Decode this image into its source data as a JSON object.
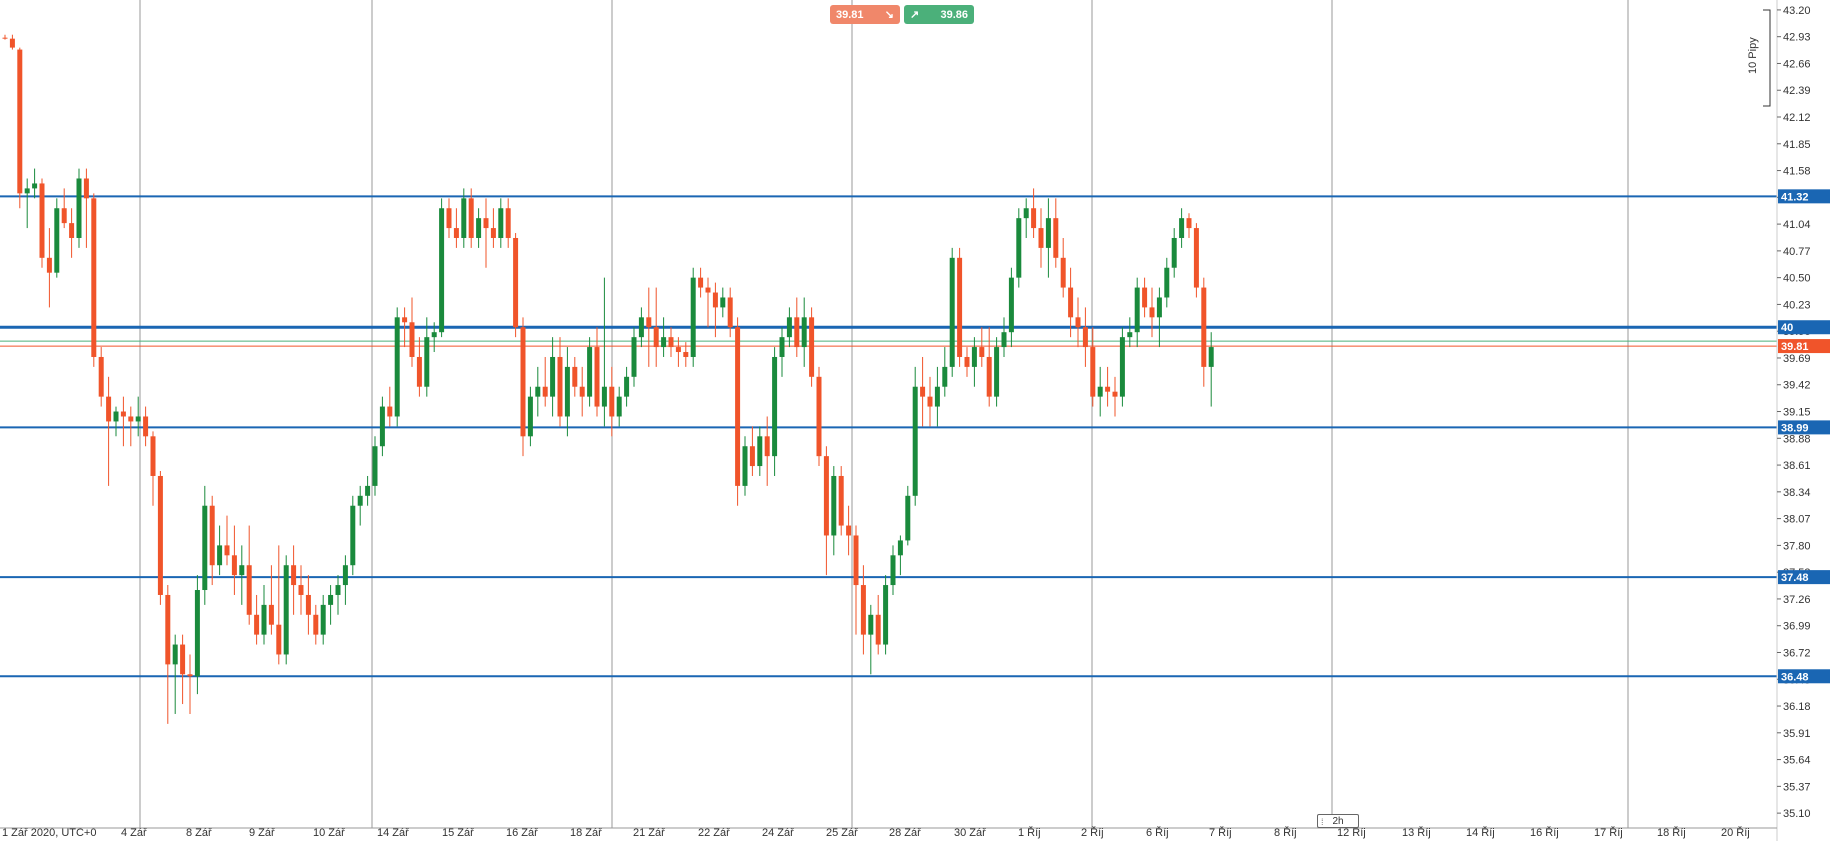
{
  "trade": {
    "sell_price": "39.81",
    "buy_price": "39.86",
    "sell_arrow": "↘",
    "buy_arrow": "↗",
    "sell_color": "#f0876a",
    "buy_color": "#4bb07a"
  },
  "pip_scale_label": "10 Pipy",
  "timeframe": "2h",
  "chart_data": {
    "type": "candlestick",
    "y_ticks": [
      "43.20",
      "42.93",
      "42.66",
      "42.39",
      "42.12",
      "41.85",
      "41.58",
      "41.31",
      "41.04",
      "40.77",
      "40.50",
      "40.23",
      "39.96",
      "39.69",
      "39.42",
      "39.15",
      "38.88",
      "38.61",
      "38.34",
      "38.07",
      "37.80",
      "37.53",
      "37.26",
      "36.99",
      "36.72",
      "36.45",
      "36.18",
      "35.91",
      "35.64",
      "35.37",
      "35.10"
    ],
    "ylim": [
      34.95,
      43.3
    ],
    "x_labels": [
      "1 Zář 2020, UTC+0",
      "4 Zář",
      "8 Zář",
      "9 Zář",
      "10 Zář",
      "14 Zář",
      "15 Zář",
      "16 Zář",
      "18 Zář",
      "21 Zář",
      "22 Zář",
      "24 Zář",
      "25 Zář",
      "28 Zář",
      "30 Zář",
      "1 Říj",
      "2 Říj",
      "6 Říj",
      "7 Říj",
      "8 Říj",
      "12 Říj",
      "13 Říj",
      "14 Říj",
      "16 Říj",
      "17 Říj",
      "18 Říj",
      "20 Říj"
    ],
    "levels": [
      {
        "value": 41.32,
        "label": "41.32"
      },
      {
        "value": 40.0,
        "label": "40"
      },
      {
        "value": 38.99,
        "label": "38.99"
      },
      {
        "value": 37.48,
        "label": "37.48"
      },
      {
        "value": 36.48,
        "label": "36.48"
      }
    ],
    "bid_line": 39.81,
    "ask_line": 39.86,
    "bid_label": "39.81",
    "level_color": "#1a66b3",
    "up_color": "#1a8a3c",
    "down_color": "#f0542a",
    "candles": [
      [
        42.92,
        42.95,
        42.9,
        42.91
      ],
      [
        42.91,
        42.95,
        42.8,
        42.82
      ],
      [
        42.8,
        42.82,
        41.2,
        41.35
      ],
      [
        41.35,
        41.5,
        41.0,
        41.4
      ],
      [
        41.4,
        41.6,
        41.3,
        41.45
      ],
      [
        41.45,
        41.5,
        40.6,
        40.7
      ],
      [
        40.7,
        41.0,
        40.2,
        40.55
      ],
      [
        40.55,
        41.3,
        40.5,
        41.2
      ],
      [
        41.2,
        41.4,
        41.0,
        41.05
      ],
      [
        41.05,
        41.2,
        40.7,
        40.9
      ],
      [
        40.9,
        41.6,
        40.8,
        41.5
      ],
      [
        41.5,
        41.6,
        40.8,
        41.3
      ],
      [
        41.3,
        41.35,
        39.6,
        39.7
      ],
      [
        39.7,
        39.8,
        39.2,
        39.3
      ],
      [
        39.3,
        39.5,
        38.4,
        39.05
      ],
      [
        39.05,
        39.2,
        38.9,
        39.15
      ],
      [
        39.15,
        39.3,
        38.8,
        39.1
      ],
      [
        39.1,
        39.2,
        38.8,
        39.05
      ],
      [
        39.05,
        39.3,
        38.9,
        39.1
      ],
      [
        39.1,
        39.2,
        38.8,
        38.9
      ],
      [
        38.9,
        38.95,
        38.2,
        38.5
      ],
      [
        38.5,
        38.55,
        37.2,
        37.3
      ],
      [
        37.3,
        37.4,
        36.0,
        36.6
      ],
      [
        36.6,
        36.9,
        36.1,
        36.8
      ],
      [
        36.8,
        36.9,
        36.2,
        36.5
      ],
      [
        36.5,
        36.7,
        36.1,
        36.48
      ],
      [
        36.48,
        37.5,
        36.3,
        37.35
      ],
      [
        37.35,
        38.4,
        37.2,
        38.2
      ],
      [
        38.2,
        38.3,
        37.4,
        37.6
      ],
      [
        37.6,
        38.0,
        37.5,
        37.8
      ],
      [
        37.8,
        38.1,
        37.6,
        37.7
      ],
      [
        37.7,
        38.0,
        37.3,
        37.5
      ],
      [
        37.5,
        37.8,
        37.2,
        37.6
      ],
      [
        37.6,
        38.0,
        37.0,
        37.1
      ],
      [
        37.1,
        37.3,
        36.8,
        36.9
      ],
      [
        36.9,
        37.4,
        36.8,
        37.2
      ],
      [
        37.2,
        37.6,
        36.9,
        37.0
      ],
      [
        37.0,
        37.8,
        36.6,
        36.7
      ],
      [
        36.7,
        37.7,
        36.6,
        37.6
      ],
      [
        37.6,
        37.8,
        37.1,
        37.4
      ],
      [
        37.4,
        37.6,
        37.1,
        37.3
      ],
      [
        37.3,
        37.5,
        36.9,
        37.1
      ],
      [
        37.1,
        37.2,
        36.8,
        36.9
      ],
      [
        36.9,
        37.3,
        36.8,
        37.2
      ],
      [
        37.2,
        37.4,
        37.0,
        37.3
      ],
      [
        37.3,
        37.5,
        37.1,
        37.4
      ],
      [
        37.4,
        37.7,
        37.2,
        37.6
      ],
      [
        37.6,
        38.3,
        37.5,
        38.2
      ],
      [
        38.2,
        38.4,
        38.0,
        38.3
      ],
      [
        38.3,
        38.5,
        38.2,
        38.4
      ],
      [
        38.4,
        38.9,
        38.3,
        38.8
      ],
      [
        38.8,
        39.3,
        38.7,
        39.2
      ],
      [
        39.2,
        39.4,
        39.0,
        39.1
      ],
      [
        39.1,
        40.2,
        39.0,
        40.1
      ],
      [
        40.1,
        40.2,
        39.8,
        40.05
      ],
      [
        40.05,
        40.3,
        39.6,
        39.7
      ],
      [
        39.7,
        39.9,
        39.3,
        39.4
      ],
      [
        39.4,
        40.1,
        39.3,
        39.9
      ],
      [
        39.9,
        40.05,
        39.75,
        39.95
      ],
      [
        39.95,
        41.3,
        39.9,
        41.2
      ],
      [
        41.2,
        41.3,
        40.9,
        41.0
      ],
      [
        41.0,
        41.2,
        40.8,
        40.9
      ],
      [
        40.9,
        41.4,
        40.8,
        41.3
      ],
      [
        41.3,
        41.4,
        40.8,
        40.9
      ],
      [
        40.9,
        41.2,
        40.8,
        41.1
      ],
      [
        41.1,
        41.3,
        40.6,
        41.0
      ],
      [
        41.0,
        41.2,
        40.8,
        40.9
      ],
      [
        40.9,
        41.3,
        40.8,
        41.2
      ],
      [
        41.2,
        41.3,
        40.8,
        40.9
      ],
      [
        40.9,
        40.95,
        39.9,
        40.0
      ],
      [
        40.0,
        40.1,
        38.7,
        38.9
      ],
      [
        38.9,
        39.4,
        38.8,
        39.3
      ],
      [
        39.3,
        39.6,
        39.1,
        39.4
      ],
      [
        39.4,
        39.7,
        39.2,
        39.3
      ],
      [
        39.3,
        39.9,
        39.1,
        39.7
      ],
      [
        39.7,
        39.9,
        39.0,
        39.1
      ],
      [
        39.1,
        39.8,
        38.9,
        39.6
      ],
      [
        39.6,
        39.7,
        39.3,
        39.4
      ],
      [
        39.4,
        39.6,
        39.1,
        39.3
      ],
      [
        39.3,
        39.9,
        39.2,
        39.8
      ],
      [
        39.8,
        40.0,
        39.1,
        39.2
      ],
      [
        39.2,
        40.5,
        39.0,
        39.4
      ],
      [
        39.4,
        39.6,
        38.9,
        39.1
      ],
      [
        39.1,
        39.4,
        39.0,
        39.3
      ],
      [
        39.3,
        39.6,
        39.2,
        39.5
      ],
      [
        39.5,
        40.0,
        39.4,
        39.9
      ],
      [
        39.9,
        40.2,
        39.8,
        40.1
      ],
      [
        40.1,
        40.4,
        39.6,
        40.0
      ],
      [
        40.0,
        40.4,
        39.6,
        39.8
      ],
      [
        39.8,
        40.1,
        39.7,
        39.9
      ],
      [
        39.9,
        40.0,
        39.7,
        39.8
      ],
      [
        39.8,
        39.9,
        39.6,
        39.75
      ],
      [
        39.75,
        39.85,
        39.6,
        39.7
      ],
      [
        39.7,
        40.6,
        39.6,
        40.5
      ],
      [
        40.5,
        40.6,
        40.3,
        40.4
      ],
      [
        40.4,
        40.5,
        40.0,
        40.35
      ],
      [
        40.35,
        40.45,
        39.9,
        40.2
      ],
      [
        40.2,
        40.4,
        40.1,
        40.3
      ],
      [
        40.3,
        40.4,
        39.9,
        40.0
      ],
      [
        40.0,
        40.1,
        38.2,
        38.4
      ],
      [
        38.4,
        38.9,
        38.3,
        38.8
      ],
      [
        38.8,
        39.0,
        38.5,
        38.6
      ],
      [
        38.6,
        39.0,
        38.5,
        38.9
      ],
      [
        38.9,
        39.1,
        38.4,
        38.7
      ],
      [
        38.7,
        39.8,
        38.5,
        39.7
      ],
      [
        39.7,
        40.0,
        39.5,
        39.9
      ],
      [
        39.9,
        40.2,
        39.8,
        40.1
      ],
      [
        40.1,
        40.3,
        39.7,
        39.8
      ],
      [
        39.8,
        40.3,
        39.6,
        40.1
      ],
      [
        40.1,
        40.2,
        39.4,
        39.5
      ],
      [
        39.5,
        39.6,
        38.6,
        38.7
      ],
      [
        38.7,
        38.8,
        37.5,
        37.9
      ],
      [
        37.9,
        38.6,
        37.7,
        38.5
      ],
      [
        38.5,
        38.6,
        37.9,
        38.0
      ],
      [
        38.0,
        38.2,
        37.7,
        37.9
      ],
      [
        37.9,
        38.0,
        36.9,
        37.4
      ],
      [
        37.4,
        37.6,
        36.7,
        36.9
      ],
      [
        36.9,
        37.2,
        36.5,
        37.1
      ],
      [
        37.1,
        37.3,
        36.7,
        36.8
      ],
      [
        36.8,
        37.5,
        36.7,
        37.4
      ],
      [
        37.4,
        37.8,
        37.3,
        37.7
      ],
      [
        37.7,
        37.9,
        37.5,
        37.85
      ],
      [
        37.85,
        38.4,
        37.8,
        38.3
      ],
      [
        38.3,
        39.6,
        38.2,
        39.4
      ],
      [
        39.4,
        39.7,
        39.0,
        39.3
      ],
      [
        39.3,
        39.5,
        39.0,
        39.2
      ],
      [
        39.2,
        39.6,
        39.0,
        39.4
      ],
      [
        39.4,
        39.8,
        39.3,
        39.6
      ],
      [
        39.6,
        40.8,
        39.5,
        40.7
      ],
      [
        40.7,
        40.8,
        39.6,
        39.7
      ],
      [
        39.7,
        39.8,
        39.5,
        39.6
      ],
      [
        39.6,
        39.9,
        39.4,
        39.8
      ],
      [
        39.8,
        40.0,
        39.6,
        39.7
      ],
      [
        39.7,
        40.0,
        39.2,
        39.3
      ],
      [
        39.3,
        39.9,
        39.2,
        39.8
      ],
      [
        39.8,
        40.1,
        39.7,
        39.95
      ],
      [
        39.95,
        40.6,
        39.8,
        40.5
      ],
      [
        40.5,
        41.2,
        40.4,
        41.1
      ],
      [
        41.1,
        41.3,
        40.9,
        41.2
      ],
      [
        41.2,
        41.4,
        40.9,
        41.0
      ],
      [
        41.0,
        41.2,
        40.6,
        40.8
      ],
      [
        40.8,
        41.3,
        40.5,
        41.1
      ],
      [
        41.1,
        41.3,
        40.6,
        40.7
      ],
      [
        40.7,
        40.9,
        40.3,
        40.4
      ],
      [
        40.4,
        40.6,
        39.9,
        40.1
      ],
      [
        40.1,
        40.3,
        39.8,
        40.0
      ],
      [
        40.0,
        40.2,
        39.6,
        39.8
      ],
      [
        39.8,
        40.0,
        39.2,
        39.3
      ],
      [
        39.3,
        39.6,
        39.1,
        39.4
      ],
      [
        39.4,
        39.6,
        39.2,
        39.35
      ],
      [
        39.35,
        39.5,
        39.1,
        39.3
      ],
      [
        39.3,
        40.0,
        39.2,
        39.9
      ],
      [
        39.9,
        40.1,
        39.8,
        39.95
      ],
      [
        39.95,
        40.5,
        39.8,
        40.4
      ],
      [
        40.4,
        40.5,
        40.1,
        40.2
      ],
      [
        40.2,
        40.4,
        39.9,
        40.1
      ],
      [
        40.1,
        40.4,
        39.8,
        40.3
      ],
      [
        40.3,
        40.7,
        40.2,
        40.6
      ],
      [
        40.6,
        41.0,
        40.5,
        40.9
      ],
      [
        40.9,
        41.2,
        40.8,
        41.1
      ],
      [
        41.1,
        41.15,
        40.9,
        41.0
      ],
      [
        41.0,
        41.05,
        40.3,
        40.4
      ],
      [
        40.4,
        40.5,
        39.4,
        39.6
      ],
      [
        39.6,
        39.95,
        39.2,
        39.8
      ]
    ]
  }
}
